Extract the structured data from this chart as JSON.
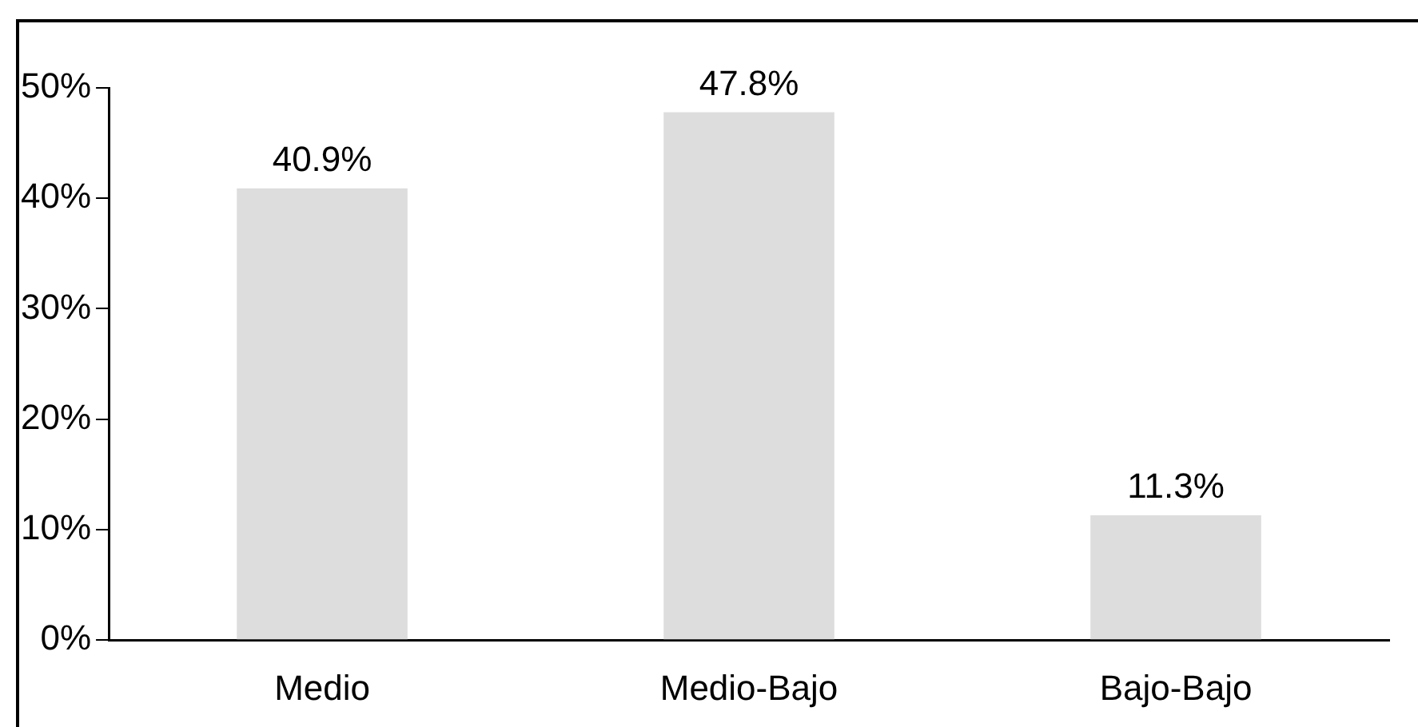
{
  "chart_data": {
    "type": "bar",
    "categories": [
      "Medio",
      "Medio-Bajo",
      "Bajo-Bajo"
    ],
    "values": [
      40.9,
      47.8,
      11.3
    ],
    "color": "#dddddd",
    "value_labels": [
      "40.9%",
      "47.8%",
      "11.3%"
    ],
    "ylim": [
      0,
      50
    ],
    "yticks": [
      {
        "value": 0,
        "label": "0%"
      },
      {
        "value": 10,
        "label": "10%"
      },
      {
        "value": 20,
        "label": "20%"
      },
      {
        "value": 30,
        "label": "30%"
      },
      {
        "value": 40,
        "label": "40%"
      },
      {
        "value": 50,
        "label": "50%"
      }
    ],
    "grid": false,
    "legend": false
  }
}
